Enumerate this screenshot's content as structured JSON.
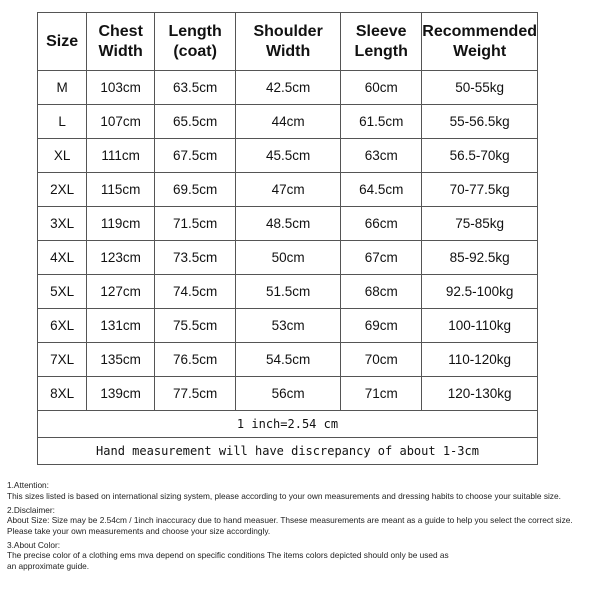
{
  "table": {
    "headers": [
      [
        "Size"
      ],
      [
        "Chest",
        "Width"
      ],
      [
        "Length",
        "(coat)"
      ],
      [
        "Shoulder",
        "Width"
      ],
      [
        "Sleeve",
        "Length"
      ],
      [
        "Recommended",
        "Weight"
      ]
    ],
    "rows": [
      [
        "M",
        "103cm",
        "63.5cm",
        "42.5cm",
        "60cm",
        "50-55kg"
      ],
      [
        "L",
        "107cm",
        "65.5cm",
        "44cm",
        "61.5cm",
        "55-56.5kg"
      ],
      [
        "XL",
        "111cm",
        "67.5cm",
        "45.5cm",
        "63cm",
        "56.5-70kg"
      ],
      [
        "2XL",
        "115cm",
        "69.5cm",
        "47cm",
        "64.5cm",
        "70-77.5kg"
      ],
      [
        "3XL",
        "119cm",
        "71.5cm",
        "48.5cm",
        "66cm",
        "75-85kg"
      ],
      [
        "4XL",
        "123cm",
        "73.5cm",
        "50cm",
        "67cm",
        "85-92.5kg"
      ],
      [
        "5XL",
        "127cm",
        "74.5cm",
        "51.5cm",
        "68cm",
        "92.5-100kg"
      ],
      [
        "6XL",
        "131cm",
        "75.5cm",
        "53cm",
        "69cm",
        "100-110kg"
      ],
      [
        "7XL",
        "135cm",
        "76.5cm",
        "54.5cm",
        "70cm",
        "110-120kg"
      ],
      [
        "8XL",
        "139cm",
        "77.5cm",
        "56cm",
        "71cm",
        "120-130kg"
      ]
    ],
    "inch_note": "1 inch=2.54 cm",
    "discrepancy_note": "Hand measurement will have discrepancy of about 1-3cm"
  },
  "notes": [
    {
      "title": "1.Attention:",
      "lines": [
        "This sizes listed is based on international sizing system, please according to your own measurements and dressing habits to choose your suitable size."
      ]
    },
    {
      "title": "2.Disclaimer:",
      "lines": [
        "About Size: Size may be 2.54cm / 1inch inaccuracy due to hand measuer. Thsese measurements are meant as a guide to help you select the correct size.",
        "Please take your own measurements and choose your size accordingly."
      ]
    },
    {
      "title": "3.About Color:",
      "lines": [
        "The precise color of a clothing ems mva depend on specific conditions The items colors depicted should only be used as",
        "an approximate guide."
      ]
    }
  ]
}
